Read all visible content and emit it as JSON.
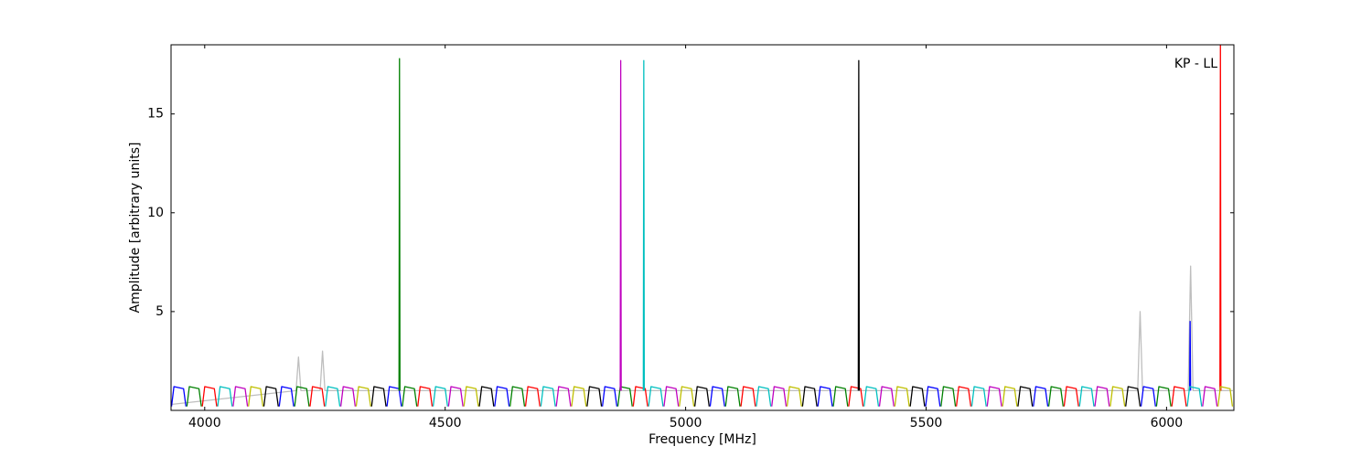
{
  "chart_data": {
    "type": "line",
    "xlabel": "Frequency [MHz]",
    "ylabel": "Amplitude [arbitrary units]",
    "annotation": "KP - LL",
    "xlim": [
      3930,
      6140
    ],
    "ylim": [
      0,
      18.5
    ],
    "xticks": [
      4000,
      4500,
      5000,
      5500,
      6000
    ],
    "yticks": [
      5,
      10,
      15
    ],
    "series": [
      {
        "color": "#bebebe",
        "x": [
          3930,
          4190,
          4195,
          4200,
          4240,
          4245,
          4250,
          5940,
          5945,
          5950,
          6045,
          6050,
          6055,
          6138
        ],
        "values": [
          0.3,
          1.0,
          2.7,
          1.0,
          1.0,
          3.0,
          1.0,
          1.0,
          5.0,
          1.0,
          1.0,
          7.3,
          1.0,
          1.0
        ]
      },
      {
        "color": "#0000ff",
        "x": [
          3931,
          3936,
          3956,
          3961,
          3962,
          4155,
          4160,
          4180,
          4185,
          4186,
          4379,
          4384,
          4404,
          4409,
          4410,
          4603,
          4608,
          4628,
          4633,
          4634,
          4827,
          4832,
          4852,
          4857,
          4858,
          5051,
          5056,
          5076,
          5081,
          5082,
          5275,
          5280,
          5300,
          5305,
          5306,
          5499,
          5504,
          5524,
          5529,
          5530,
          5723,
          5728,
          5748,
          5753,
          5754,
          5947,
          5952,
          5972,
          5977,
          5978,
          6048,
          6049,
          6050
        ],
        "values": [
          0.2,
          1.2,
          1.1,
          0.2,
          null,
          0.2,
          1.2,
          1.1,
          0.2,
          null,
          0.2,
          1.2,
          1.1,
          0.2,
          null,
          0.2,
          1.2,
          1.1,
          0.2,
          null,
          0.2,
          1.2,
          1.1,
          0.2,
          null,
          0.2,
          1.2,
          1.1,
          0.2,
          null,
          0.2,
          1.2,
          1.1,
          0.2,
          null,
          0.2,
          1.2,
          1.1,
          0.2,
          null,
          0.2,
          1.2,
          1.1,
          0.2,
          null,
          0.2,
          1.2,
          1.1,
          0.2,
          null,
          1,
          4.5,
          1
        ]
      },
      {
        "color": "#008000",
        "x": [
          3963,
          3968,
          3988,
          3993,
          3994,
          4187,
          4192,
          4212,
          4217,
          4218,
          4404,
          4405,
          4406,
          4407,
          4411,
          4416,
          4436,
          4441,
          4442,
          4635,
          4640,
          4660,
          4665,
          4666,
          4859,
          4864,
          4884,
          4889,
          4890,
          5083,
          5088,
          5108,
          5113,
          5114,
          5307,
          5312,
          5332,
          5337,
          5338,
          5531,
          5536,
          5556,
          5561,
          5562,
          5755,
          5760,
          5780,
          5785,
          5786,
          5979,
          5984,
          6004,
          6009
        ],
        "values": [
          0.2,
          1.2,
          1.1,
          0.2,
          null,
          0.2,
          1.2,
          1.1,
          0.2,
          null,
          1,
          17.8,
          1,
          null,
          0.2,
          1.2,
          1.1,
          0.2,
          null,
          0.2,
          1.2,
          1.1,
          0.2,
          null,
          0.2,
          1.2,
          1.1,
          0.2,
          null,
          0.2,
          1.2,
          1.1,
          0.2,
          null,
          0.2,
          1.2,
          1.1,
          0.2,
          null,
          0.2,
          1.2,
          1.1,
          0.2,
          null,
          0.2,
          1.2,
          1.1,
          0.2,
          null,
          0.2,
          1.2,
          1.1,
          0.2
        ]
      },
      {
        "color": "#ff0000",
        "x": [
          3995,
          4000,
          4020,
          4025,
          4026,
          4219,
          4224,
          4244,
          4249,
          4250,
          4443,
          4448,
          4468,
          4473,
          4474,
          4667,
          4672,
          4692,
          4697,
          4698,
          4891,
          4896,
          4916,
          4921,
          4922,
          5115,
          5120,
          5140,
          5145,
          5146,
          5339,
          5344,
          5364,
          5369,
          5370,
          5563,
          5568,
          5588,
          5593,
          5594,
          5787,
          5792,
          5812,
          5817,
          5818,
          6011,
          6016,
          6036,
          6041,
          6042,
          6111,
          6112,
          6113
        ],
        "values": [
          0.2,
          1.2,
          1.1,
          0.2,
          null,
          0.2,
          1.2,
          1.1,
          0.2,
          null,
          0.2,
          1.2,
          1.1,
          0.2,
          null,
          0.2,
          1.2,
          1.1,
          0.2,
          null,
          0.2,
          1.2,
          1.1,
          0.2,
          null,
          0.2,
          1.2,
          1.1,
          0.2,
          null,
          0.2,
          1.2,
          1.1,
          0.2,
          null,
          0.2,
          1.2,
          1.1,
          0.2,
          null,
          0.2,
          1.2,
          1.1,
          0.2,
          null,
          0.2,
          1.2,
          1.1,
          0.2,
          null,
          1,
          18.5,
          1
        ]
      },
      {
        "color": "#00bfbf",
        "x": [
          4027,
          4032,
          4052,
          4057,
          4058,
          4251,
          4256,
          4276,
          4281,
          4282,
          4475,
          4480,
          4500,
          4505,
          4506,
          4699,
          4704,
          4724,
          4729,
          4730,
          4912,
          4913,
          4914,
          4915,
          4923,
          4928,
          4948,
          4953,
          4954,
          5147,
          5152,
          5172,
          5177,
          5178,
          5371,
          5376,
          5396,
          5401,
          5402,
          5595,
          5600,
          5620,
          5625,
          5626,
          5819,
          5824,
          5844,
          5849,
          5850,
          6043,
          6048,
          6068,
          6073
        ],
        "values": [
          0.2,
          1.2,
          1.1,
          0.2,
          null,
          0.2,
          1.2,
          1.1,
          0.2,
          null,
          0.2,
          1.2,
          1.1,
          0.2,
          null,
          0.2,
          1.2,
          1.1,
          0.2,
          null,
          1,
          17.7,
          1,
          null,
          0.2,
          1.2,
          1.1,
          0.2,
          null,
          0.2,
          1.2,
          1.1,
          0.2,
          null,
          0.2,
          1.2,
          1.1,
          0.2,
          null,
          0.2,
          1.2,
          1.1,
          0.2,
          null,
          0.2,
          1.2,
          1.1,
          0.2,
          null,
          0.2,
          1.2,
          1.1,
          0.2
        ]
      },
      {
        "color": "#bf00bf",
        "x": [
          4059,
          4064,
          4084,
          4089,
          4090,
          4283,
          4288,
          4308,
          4313,
          4314,
          4507,
          4512,
          4532,
          4537,
          4538,
          4731,
          4736,
          4756,
          4761,
          4762,
          4864,
          4865,
          4866,
          4867,
          4955,
          4960,
          4980,
          4985,
          4986,
          5179,
          5184,
          5204,
          5209,
          5210,
          5403,
          5408,
          5428,
          5433,
          5434,
          5627,
          5632,
          5652,
          5657,
          5658,
          5851,
          5856,
          5876,
          5881,
          5882,
          6075,
          6080,
          6100,
          6105
        ],
        "values": [
          0.2,
          1.2,
          1.1,
          0.2,
          null,
          0.2,
          1.2,
          1.1,
          0.2,
          null,
          0.2,
          1.2,
          1.1,
          0.2,
          null,
          0.2,
          1.2,
          1.1,
          0.2,
          null,
          1,
          17.7,
          1,
          null,
          0.2,
          1.2,
          1.1,
          0.2,
          null,
          0.2,
          1.2,
          1.1,
          0.2,
          null,
          0.2,
          1.2,
          1.1,
          0.2,
          null,
          0.2,
          1.2,
          1.1,
          0.2,
          null,
          0.2,
          1.2,
          1.1,
          0.2,
          null,
          0.2,
          1.2,
          1.1,
          0.2
        ]
      },
      {
        "color": "#bfbf00",
        "x": [
          4091,
          4096,
          4116,
          4121,
          4122,
          4315,
          4320,
          4340,
          4345,
          4346,
          4539,
          4544,
          4564,
          4569,
          4570,
          4763,
          4768,
          4788,
          4793,
          4794,
          4987,
          4992,
          5012,
          5017,
          5018,
          5211,
          5216,
          5236,
          5241,
          5242,
          5435,
          5440,
          5460,
          5465,
          5466,
          5659,
          5664,
          5684,
          5689,
          5690,
          5883,
          5888,
          5908,
          5913,
          5914,
          6107,
          6112,
          6132,
          6137
        ],
        "values": [
          0.2,
          1.2,
          1.1,
          0.2,
          null,
          0.2,
          1.2,
          1.1,
          0.2,
          null,
          0.2,
          1.2,
          1.1,
          0.2,
          null,
          0.2,
          1.2,
          1.1,
          0.2,
          null,
          0.2,
          1.2,
          1.1,
          0.2,
          null,
          0.2,
          1.2,
          1.1,
          0.2,
          null,
          0.2,
          1.2,
          1.1,
          0.2,
          null,
          0.2,
          1.2,
          1.1,
          0.2,
          null,
          0.2,
          1.2,
          1.1,
          0.2,
          null,
          0.2,
          1.2,
          1.1,
          0.2
        ]
      },
      {
        "color": "#000000",
        "x": [
          4123,
          4128,
          4148,
          4153,
          4154,
          4347,
          4352,
          4372,
          4377,
          4378,
          4571,
          4576,
          4596,
          4601,
          4602,
          4795,
          4800,
          4820,
          4825,
          4826,
          5019,
          5024,
          5044,
          5049,
          5050,
          5243,
          5248,
          5268,
          5273,
          5274,
          5359,
          5360,
          5361,
          5362,
          5467,
          5472,
          5492,
          5497,
          5498,
          5691,
          5696,
          5716,
          5721,
          5722,
          5915,
          5920,
          5940,
          5945
        ],
        "values": [
          0.2,
          1.2,
          1.1,
          0.2,
          null,
          0.2,
          1.2,
          1.1,
          0.2,
          null,
          0.2,
          1.2,
          1.1,
          0.2,
          null,
          0.2,
          1.2,
          1.1,
          0.2,
          null,
          0.2,
          1.2,
          1.1,
          0.2,
          null,
          0.2,
          1.2,
          1.1,
          0.2,
          null,
          1,
          17.7,
          1,
          null,
          0.2,
          1.2,
          1.1,
          0.2,
          null,
          0.2,
          1.2,
          1.1,
          0.2,
          null,
          0.2,
          1.2,
          1.1,
          0.2
        ]
      }
    ]
  }
}
